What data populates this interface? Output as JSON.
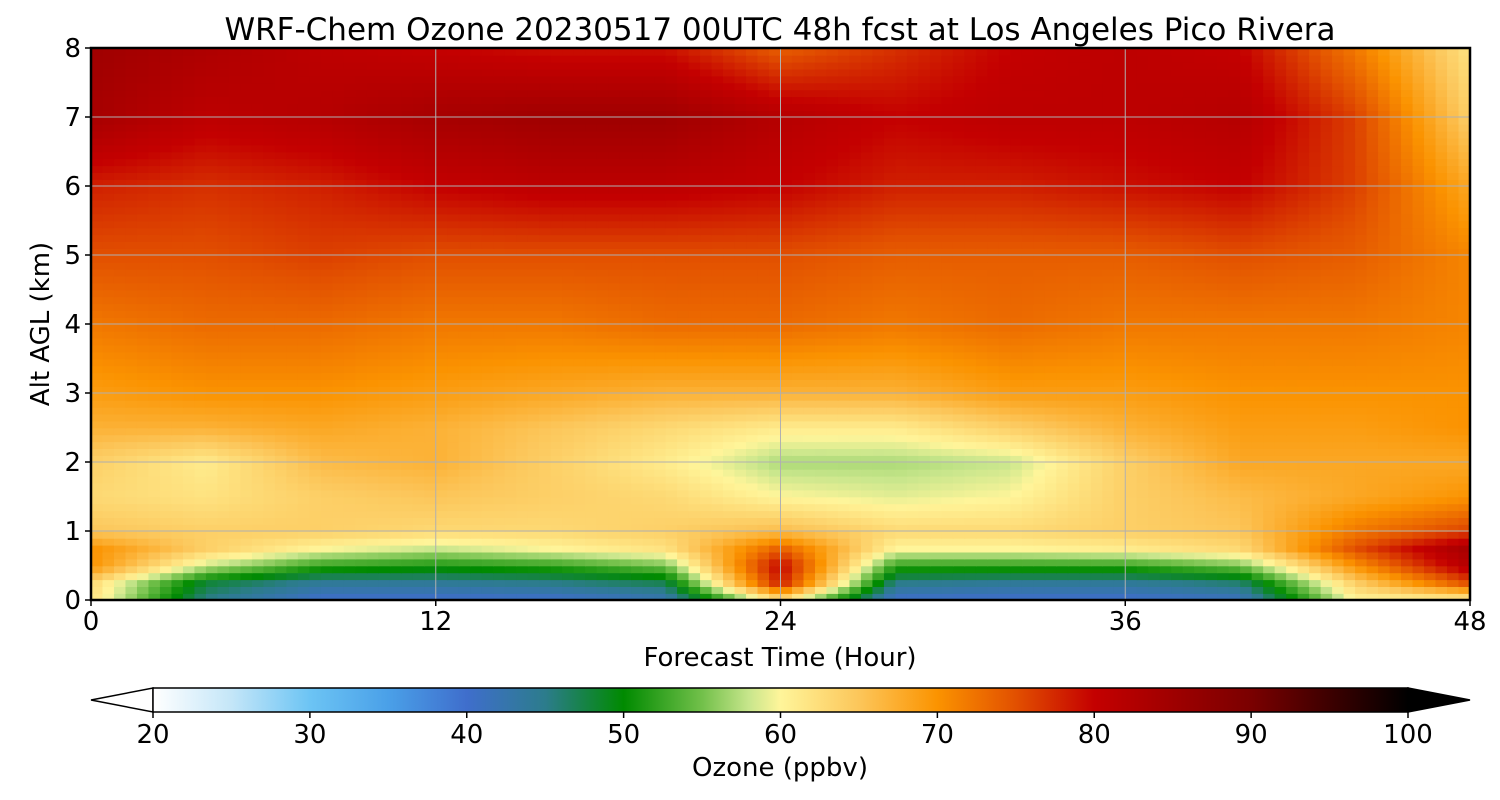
{
  "chart_data": {
    "type": "heatmap",
    "title": "WRF-Chem Ozone  20230517 00UTC 48h fcst at Los Angeles Pico Rivera",
    "xlabel": "Forecast Time (Hour)",
    "ylabel": "Alt AGL (km)",
    "xlim": [
      0,
      48
    ],
    "ylim": [
      0,
      8
    ],
    "x_ticks": [
      "0",
      "12",
      "24",
      "36",
      "48"
    ],
    "y_ticks": [
      "0",
      "1",
      "2",
      "3",
      "4",
      "5",
      "6",
      "7",
      "8"
    ],
    "grid": true,
    "x": [
      0,
      4,
      8,
      12,
      16,
      20,
      24,
      28,
      32,
      36,
      40,
      44,
      48
    ],
    "y": [
      0,
      0.25,
      0.5,
      0.75,
      1,
      1.5,
      2,
      2.5,
      3,
      4,
      5,
      6,
      7,
      8
    ],
    "z": [
      [
        62,
        45,
        40,
        40,
        40,
        42,
        62,
        40,
        40,
        40,
        41,
        60,
        60
      ],
      [
        63,
        48,
        44,
        44,
        45,
        47,
        78,
        45,
        44,
        44,
        46,
        64,
        75
      ],
      [
        70,
        58,
        52,
        51,
        52,
        55,
        80,
        52,
        52,
        52,
        55,
        70,
        82
      ],
      [
        70,
        64,
        60,
        58,
        60,
        62,
        74,
        60,
        60,
        61,
        63,
        75,
        84
      ],
      [
        65,
        64,
        64,
        63,
        63,
        64,
        66,
        63,
        63,
        64,
        65,
        72,
        76
      ],
      [
        63,
        62,
        64,
        65,
        64,
        63,
        60,
        59,
        60,
        64,
        66,
        68,
        70
      ],
      [
        64,
        61,
        66,
        67,
        64,
        61,
        57,
        57,
        58,
        64,
        68,
        68,
        68
      ],
      [
        67,
        67,
        68,
        67,
        65,
        63,
        61,
        61,
        64,
        67,
        69,
        69,
        70
      ],
      [
        69,
        70,
        70,
        69,
        68,
        67,
        67,
        67,
        69,
        69,
        70,
        70,
        70
      ],
      [
        72,
        73,
        73,
        72,
        72,
        73,
        73,
        72,
        73,
        72,
        72,
        72,
        71
      ],
      [
        75,
        75,
        76,
        75,
        75,
        75,
        75,
        74,
        74,
        74,
        75,
        74,
        71
      ],
      [
        78,
        77,
        78,
        80,
        81,
        81,
        80,
        78,
        78,
        79,
        80,
        76,
        68
      ],
      [
        84,
        81,
        82,
        84,
        85,
        85,
        82,
        80,
        81,
        81,
        82,
        76,
        64
      ],
      [
        85,
        83,
        81,
        80,
        79,
        79,
        74,
        77,
        80,
        81,
        80,
        72,
        62
      ]
    ],
    "colorbar": {
      "label": "Ozone  (ppbv)",
      "ticks": [
        "20",
        "30",
        "40",
        "50",
        "60",
        "70",
        "80",
        "90",
        "100"
      ],
      "min": 20,
      "max": 100,
      "extend": "both",
      "stops": [
        [
          20,
          "#ffffff"
        ],
        [
          25,
          "#c4e6f8"
        ],
        [
          30,
          "#6cc4f4"
        ],
        [
          35,
          "#4aa0e8"
        ],
        [
          40,
          "#3f6ecc"
        ],
        [
          45,
          "#2c7c8c"
        ],
        [
          50,
          "#008a00"
        ],
        [
          55,
          "#72c04a"
        ],
        [
          58,
          "#c8e68c"
        ],
        [
          60,
          "#fff59a"
        ],
        [
          65,
          "#fcc65a"
        ],
        [
          70,
          "#fb9300"
        ],
        [
          75,
          "#e25000"
        ],
        [
          80,
          "#c40000"
        ],
        [
          90,
          "#7a0000"
        ],
        [
          100,
          "#000000"
        ]
      ]
    }
  }
}
